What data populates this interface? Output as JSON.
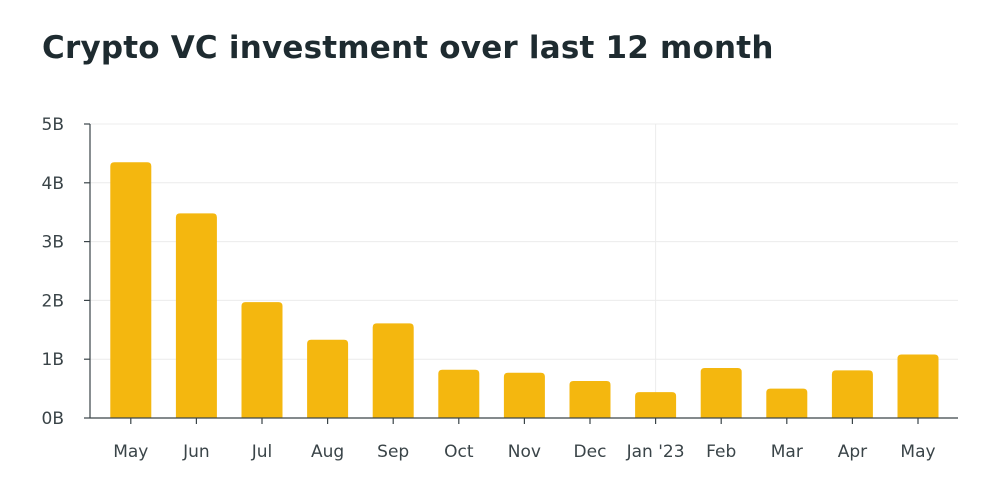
{
  "chart_data": {
    "type": "bar",
    "title": "Crypto VC investment over last 12 month",
    "xlabel": "",
    "ylabel": "",
    "categories": [
      "May",
      "Jun",
      "Jul",
      "Aug",
      "Sep",
      "Oct",
      "Nov",
      "Dec",
      "Jan '23",
      "Feb",
      "Mar",
      "Apr",
      "May"
    ],
    "values": [
      4.35,
      3.48,
      1.97,
      1.33,
      1.61,
      0.82,
      0.77,
      0.63,
      0.44,
      0.85,
      0.5,
      0.81,
      1.08
    ],
    "unit": "B",
    "ylim": [
      0,
      5
    ],
    "yticks": [
      {
        "value": 0,
        "label": "0B"
      },
      {
        "value": 1,
        "label": "1B"
      },
      {
        "value": 2,
        "label": "2B"
      },
      {
        "value": 3,
        "label": "3B"
      },
      {
        "value": 4,
        "label": "4B"
      },
      {
        "value": 5,
        "label": "5B"
      }
    ],
    "bar_color": "#f4b70f",
    "grid": true,
    "year_divider_category": "Jan '23"
  }
}
